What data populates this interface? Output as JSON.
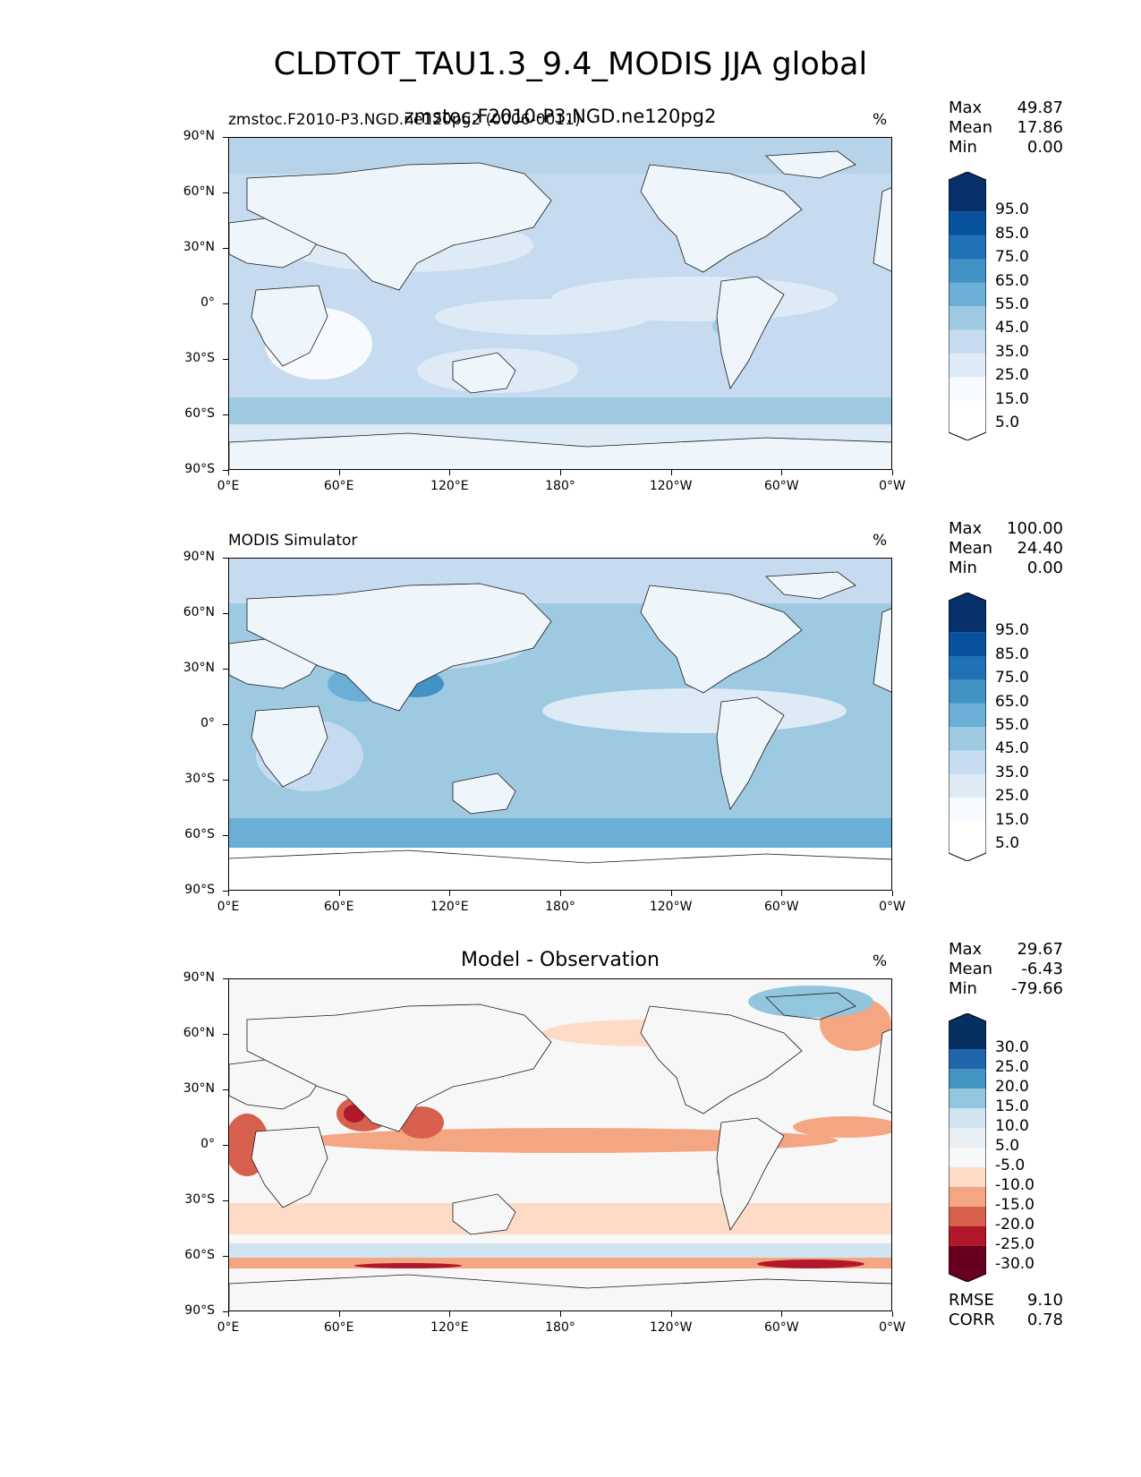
{
  "main_title": "CLDTOT_TAU1.3_9.4_MODIS JJA global",
  "panels": [
    {
      "title_left": "zmstoc.F2010-P3.NGD.ne120pg2 (0006-0011)",
      "title_overlay": "zmstoc.F2010-P3.NGD.ne120pg2",
      "title_center": "",
      "units": "%",
      "stats": {
        "max_label": "Max",
        "max": "49.87",
        "mean_label": "Mean",
        "mean": "17.86",
        "min_label": "Min",
        "min": "0.00"
      },
      "colorbar": {
        "levels": [
          "95.0",
          "85.0",
          "75.0",
          "65.0",
          "55.0",
          "45.0",
          "35.0",
          "25.0",
          "15.0",
          "5.0"
        ],
        "colors": [
          "#08306b",
          "#08519c",
          "#2171b5",
          "#4292c6",
          "#6baed6",
          "#9ecae1",
          "#c6dbef",
          "#deebf7",
          "#f7fbff",
          "#ffffff"
        ]
      }
    },
    {
      "title_left": "MODIS Simulator",
      "title_overlay": "",
      "title_center": "",
      "units": "%",
      "stats": {
        "max_label": "Max",
        "max": "100.00",
        "mean_label": "Mean",
        "mean": "24.40",
        "min_label": "Min",
        "min": "0.00"
      },
      "colorbar": {
        "levels": [
          "95.0",
          "85.0",
          "75.0",
          "65.0",
          "55.0",
          "45.0",
          "35.0",
          "25.0",
          "15.0",
          "5.0"
        ],
        "colors": [
          "#08306b",
          "#08519c",
          "#2171b5",
          "#4292c6",
          "#6baed6",
          "#9ecae1",
          "#c6dbef",
          "#deebf7",
          "#f7fbff",
          "#ffffff"
        ]
      }
    },
    {
      "title_left": "",
      "title_overlay": "",
      "title_center": "Model - Observation",
      "units": "%",
      "stats": {
        "max_label": "Max",
        "max": "29.67",
        "mean_label": "Mean",
        "mean": "-6.43",
        "min_label": "Min",
        "min": "-79.66"
      },
      "colorbar": {
        "levels": [
          "30.0",
          "25.0",
          "20.0",
          "15.0",
          "10.0",
          "5.0",
          "-5.0",
          "-10.0",
          "-15.0",
          "-20.0",
          "-25.0",
          "-30.0"
        ],
        "colors": [
          "#053061",
          "#2166ac",
          "#4393c3",
          "#92c5de",
          "#d1e5f0",
          "#e8f0f6",
          "#f7f7f7",
          "#fddbc7",
          "#f4a582",
          "#d6604d",
          "#b2182b",
          "#67001f"
        ]
      },
      "footer": {
        "rmse_label": "RMSE",
        "rmse": "9.10",
        "corr_label": "CORR",
        "corr": "0.78"
      }
    }
  ],
  "axes": {
    "y_ticks": [
      "90°N",
      "60°N",
      "30°N",
      "0°",
      "30°S",
      "60°S",
      "90°S"
    ],
    "x_ticks": [
      "0°E",
      "60°E",
      "120°E",
      "180°",
      "120°W",
      "60°W",
      "0°W"
    ]
  },
  "colors": {
    "land_outline": "#1a1a1a",
    "ocean_base_1": "#c6dbef",
    "ocean_base_2": "#c6dbef",
    "diff_base": "#f7f7f7"
  }
}
